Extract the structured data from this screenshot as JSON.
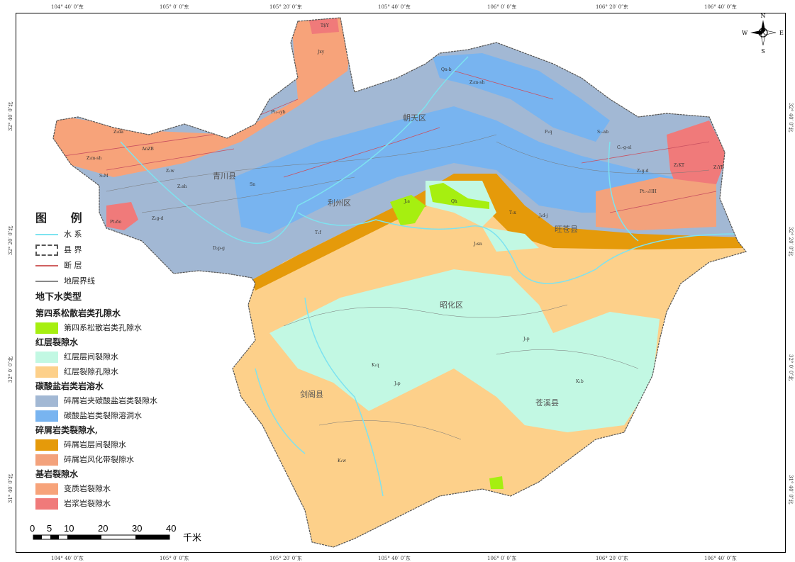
{
  "axes": {
    "top": [
      "104° 40′ 0″东",
      "105° 0′ 0″东",
      "105° 20′ 0″东",
      "105° 40′ 0″东",
      "106° 0′ 0″东",
      "106° 20′ 0″东",
      "106° 40′ 0″东"
    ],
    "bottom": [
      "104° 40′ 0″东",
      "105° 0′ 0″东",
      "105° 20′ 0″东",
      "105° 40′ 0″东",
      "106° 0′ 0″东",
      "106° 20′ 0″东",
      "106° 40′ 0″东"
    ],
    "left": [
      "32° 40′ 0″北",
      "32° 20′ 0″北",
      "32° 0′ 0″北",
      "31° 40′ 0″北"
    ],
    "right": [
      "32° 40′ 0″北",
      "32° 20′ 0″北",
      "32° 0′ 0″北",
      "31° 40′ 0″北"
    ]
  },
  "compass": {
    "n": "N",
    "s": "S",
    "e": "E",
    "w": "W"
  },
  "places": [
    "青川县",
    "朝天区",
    "利州区",
    "旺苍县",
    "昭化区",
    "剑阁县",
    "苍溪县"
  ],
  "codes": [
    "Jxy",
    "T$Y",
    "Pt₁-₂yb",
    "Z₂da",
    "AnZB",
    "Z₂m-sh",
    "S₂M",
    "Z₂w",
    "Z₂sh",
    "Sn",
    "Z₂g-d",
    "Pt₁δο",
    "D₂p-g",
    "Qn-b",
    "Z₂m-sh",
    "P₂q",
    "S₁-ab",
    "C₁-g-el",
    "Z₂g-d",
    "Z₁KT",
    "Z₁YB",
    "Pt₁-₂HH",
    "T₁f",
    "J₂s",
    "Qh",
    "T₁x",
    "J₁d-j",
    "J₃sn",
    "K₁q",
    "J₃p",
    "K₁w",
    "K₁b",
    "J₂p"
  ],
  "legend": {
    "title": "图 例",
    "lines": [
      {
        "label": "水  系",
        "color": "#7de3f0"
      },
      {
        "label": "县  界",
        "color": "#555555"
      },
      {
        "label": "断  层",
        "color": "#d06060"
      },
      {
        "label": "地层界线",
        "color": "#888888"
      }
    ],
    "heading": "地下水类型",
    "groups": [
      {
        "name": "第四系松散岩类孔隙水",
        "items": [
          {
            "label": "第四系松散岩类孔隙水",
            "color": "#a6ef10"
          }
        ]
      },
      {
        "name": "红层裂隙水",
        "items": [
          {
            "label": "红层层间裂隙水",
            "color": "#c2f8e3"
          },
          {
            "label": "红层裂隙孔隙水",
            "color": "#fdd08a"
          }
        ]
      },
      {
        "name": "碳酸盐岩类岩溶水",
        "items": [
          {
            "label": "碎屑岩夹碳酸盐岩类裂隙水",
            "color": "#a2b8d4"
          },
          {
            "label": "碳酸盐岩类裂隙溶洞水",
            "color": "#78b4f0"
          }
        ]
      },
      {
        "name": "碎屑岩类裂隙水,",
        "items": [
          {
            "label": "碎屑岩层间裂隙水",
            "color": "#e59a0a"
          },
          {
            "label": "碎屑岩风化带裂隙水",
            "color": "#f3a27c"
          }
        ]
      },
      {
        "name": "基岩裂隙水",
        "items": [
          {
            "label": "变质岩裂隙水",
            "color": "#f7a37a"
          },
          {
            "label": "岩浆岩裂隙水",
            "color": "#f07a7a"
          }
        ]
      }
    ]
  },
  "scale": {
    "ticks": [
      "0",
      "5",
      "10",
      "20",
      "30",
      "40"
    ],
    "unit": "千米"
  }
}
